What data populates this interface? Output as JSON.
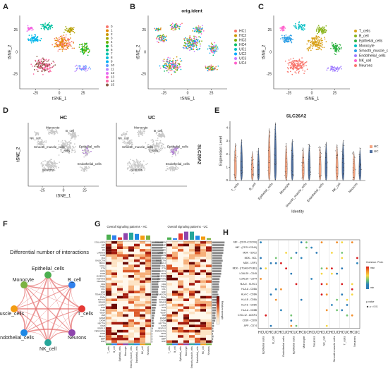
{
  "panelA": {
    "label": "A",
    "xlabel": "tSNE_1",
    "ylabel": "tSNE_2",
    "xticks": [
      "-25",
      "0",
      "25"
    ],
    "yticks": [
      "25",
      "0",
      "-25"
    ],
    "legend": [
      "0",
      "1",
      "2",
      "3",
      "4",
      "5",
      "6",
      "7",
      "8",
      "9",
      "10",
      "11",
      "12",
      "13",
      "14",
      "15"
    ],
    "colors": [
      "#f8766d",
      "#e58700",
      "#c99800",
      "#a3a500",
      "#6bb100",
      "#00ba38",
      "#00bf7d",
      "#00c0af",
      "#00bcd8",
      "#00b0f6",
      "#619cff",
      "#b983ff",
      "#e76bf3",
      "#fd61d1",
      "#ff67a4",
      "#8a5a44"
    ]
  },
  "panelB": {
    "label": "B",
    "title": "orig.ident",
    "xlabel": "tSNE_1",
    "ylabel": "tSNE_2",
    "xticks": [
      "-25",
      "0",
      "25"
    ],
    "yticks": [
      "25",
      "0",
      "-25"
    ],
    "legend": [
      "HC1",
      "HC2",
      "HC3",
      "HC4",
      "UC1",
      "UC2",
      "UC3",
      "UC4"
    ],
    "colors": [
      "#f8766d",
      "#cd9600",
      "#7cae00",
      "#00be67",
      "#00bfc4",
      "#00a9ff",
      "#c77cff",
      "#ff61cc"
    ]
  },
  "panelC": {
    "label": "C",
    "xlabel": "tSNE_1",
    "ylabel": "tSNE_2",
    "xticks": [
      "-25",
      "0",
      "25"
    ],
    "yticks": [
      "25",
      "0",
      "-25"
    ],
    "legend": [
      "T_cells",
      "B_cell",
      "Epithelial_cells",
      "Monocyte",
      "Smooth_muscle_cells",
      "Endothelial_cells",
      "NK_cell",
      "Neurons"
    ],
    "colors": [
      "#d9a21a",
      "#8ab41c",
      "#2fb344",
      "#00bfc4",
      "#2e9fe6",
      "#a07cff",
      "#ff61cc",
      "#f8766d"
    ]
  },
  "panelD": {
    "label": "D",
    "titles": [
      "HC",
      "UC"
    ],
    "gene": "SLC26A2",
    "xlabel": "tSNE_1",
    "ylabel": "tSNE_2",
    "xticks": [
      "-25",
      "0",
      "25"
    ],
    "cell_labels": [
      "Monocyte",
      "NK_cell",
      "B_cell",
      "Smooth_muscle_cells",
      "Epithelial_cells",
      "T_cells",
      "Endothelial_cells",
      "Neurons"
    ]
  },
  "panelE": {
    "label": "E",
    "title": "SLC26A2",
    "ylabel": "Expression Level",
    "xlabel": "Identity",
    "yticks": [
      "0",
      "1",
      "2",
      "3",
      "4"
    ],
    "legend": [
      "HC",
      "UC"
    ],
    "legend_colors": [
      "#f4a582",
      "#4d6e9e"
    ],
    "categories": [
      "T_cells",
      "B_cell",
      "Epithelial_cells",
      "Monocyte",
      "Smooth_muscle_cells",
      "Endothelial_cells",
      "NK_cell",
      "Neurons"
    ]
  },
  "panelF": {
    "label": "F",
    "title": "Differential number of interactions",
    "nodes": [
      "Epithelial_cells",
      "B_cell",
      "T_cells",
      "Neurons",
      "NK_cell",
      "Endothelial_cells",
      "Smooth_muscle_cells",
      "Monocyte"
    ]
  },
  "panelG": {
    "label": "G",
    "titles": [
      "Overall signaling patterns - HC",
      "Overall signaling patterns - UC"
    ],
    "legend": "Relative strength",
    "pathways": [
      "COLLAGEN",
      "MIF",
      "APP",
      "MK",
      "LAMININ",
      "CD99",
      "FN1",
      "GALECTIN",
      "MHC-I",
      "CXCL",
      "PTN",
      "SPP1",
      "CD45",
      "ANNEXIN",
      "VISFATIN",
      "PECAM1",
      "CDH",
      "THBS",
      "CCL",
      "EGF",
      "TENASCIN",
      "PARs",
      "NOTCH",
      "SEMA3",
      "ncWNT",
      "GAS",
      "TGFb",
      "VEGF",
      "JAM",
      "ESAM",
      "CADM",
      "NECTIN",
      "ICAM",
      "SELPLG",
      "PERIOSTIN",
      "CD46",
      "MHC-II",
      "BMP",
      "HGF"
    ],
    "columns": [
      "T_cells",
      "B_cell",
      "Epithelial_cells",
      "Monocyte",
      "Smooth_muscle_cells",
      "Endothelial_cells",
      "NK_cell",
      "Neurons"
    ]
  },
  "panelH": {
    "label": "H",
    "legend_title": "Commun. Prob.",
    "legend_max": "max",
    "legend_min": "min",
    "pvalue_title": "p-value",
    "pvalue": "p < 0.01",
    "rows": [
      "MIF - (CD74+CXCR4)",
      "MIF - (CD74+CD44)",
      "MDK - SDC2",
      "MDK - NCL",
      "MDK - LRP1",
      "MDK - (ITGA6+ITGB1)",
      "LGALS9 - CD45",
      "LGALS9 - CD44",
      "HLA-E - KLRC1",
      "HLA-A - CD8A",
      "HLA-C - CD8A",
      "HLA-B - CD8A",
      "HLA-E - CD8A",
      "HLA-A - CD8B",
      "CXCL12 - ACKR1",
      "CD99 - CD99",
      "APP - CD74"
    ],
    "conditions": [
      "HC",
      "UC"
    ],
    "groups": [
      "Epithelial cells",
      "B_cell",
      "Endothelial cells",
      "Epithelial cells",
      "Monocyte",
      "Neurons",
      "NK_cell",
      "Smooth muscle cells",
      "T_cells",
      "Neurons"
    ]
  }
}
